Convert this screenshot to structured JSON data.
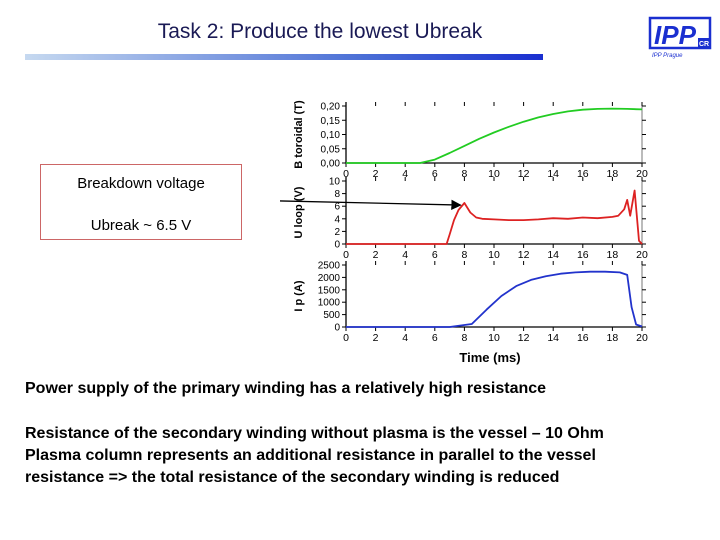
{
  "header": {
    "title": "Task 2: Produce the lowest Ubreak"
  },
  "logo": {
    "text": "IPP",
    "suffix": "CR",
    "subtext": "IPP Prague"
  },
  "callout": {
    "line1": "Breakdown  voltage",
    "line2": "Ubreak ~ 6.5 V"
  },
  "body_text": {
    "paragraph1": "Power supply of the primary winding has a relatively high resistance",
    "paragraph2_lines": [
      "Resistance of the secondary winding without plasma is the vessel – 10 Ohm",
      "Plasma column represents an additional resistance in parallel to the vessel",
      "resistance => the total resistance of the secondary winding is reduced"
    ]
  },
  "colors": {
    "bt": "#22cc22",
    "uloop": "#dd2222",
    "ip": "#2233cc",
    "title": "#1a1a55"
  },
  "chart_data": [
    {
      "type": "line",
      "ylabel": "B toroidal (T)",
      "xlim": [
        0,
        20
      ],
      "ylim": [
        0,
        0.2
      ],
      "xticks": [
        "0",
        "2",
        "4",
        "6",
        "8",
        "10",
        "12",
        "14",
        "16",
        "18",
        "20"
      ],
      "yticks": [
        "0.00",
        "0.05",
        "0.10",
        "0.15",
        "0.20"
      ],
      "ytick_labels": [
        "0,00",
        "0,05",
        "0,10",
        "0,15",
        "0,20"
      ],
      "series": [
        {
          "color": "#22cc22",
          "x": [
            0,
            5,
            6,
            7,
            8,
            9,
            10,
            11,
            12,
            13,
            14,
            15,
            16,
            17,
            18,
            19,
            20
          ],
          "y": [
            0,
            0,
            0.012,
            0.035,
            0.06,
            0.085,
            0.107,
            0.127,
            0.145,
            0.16,
            0.172,
            0.181,
            0.187,
            0.19,
            0.191,
            0.19,
            0.188
          ]
        }
      ]
    },
    {
      "type": "line",
      "ylabel": "U loop (V)",
      "xlim": [
        0,
        20
      ],
      "ylim": [
        0,
        10
      ],
      "xticks": [
        "0",
        "2",
        "4",
        "6",
        "8",
        "10",
        "12",
        "14",
        "16",
        "18",
        "20"
      ],
      "yticks": [
        "0",
        "2",
        "4",
        "6",
        "8",
        "10"
      ],
      "annotation": "Ubreak ~ 6.5 V",
      "series": [
        {
          "color": "#dd2222",
          "x": [
            0,
            6.8,
            7.0,
            7.3,
            7.6,
            8.0,
            8.4,
            8.8,
            9.2,
            10,
            11,
            12,
            13,
            14,
            15,
            16,
            17,
            18,
            18.4,
            18.8,
            19.0,
            19.2,
            19.5,
            19.8,
            20
          ],
          "y": [
            0,
            0,
            1.5,
            3.8,
            5.4,
            6.5,
            5.0,
            4.2,
            4.0,
            3.9,
            3.8,
            3.8,
            3.9,
            4.1,
            4.0,
            4.2,
            4.1,
            4.3,
            4.5,
            5.5,
            7.0,
            4.5,
            8.5,
            0.5,
            0
          ]
        }
      ]
    },
    {
      "type": "line",
      "ylabel": "I p (A)",
      "xlabel": "Time (ms)",
      "xlim": [
        0,
        20
      ],
      "ylim": [
        0,
        2500
      ],
      "xticks": [
        "0",
        "2",
        "4",
        "6",
        "8",
        "10",
        "12",
        "14",
        "16",
        "18",
        "20"
      ],
      "yticks": [
        "0",
        "500",
        "1000",
        "1500",
        "2000",
        "2500"
      ],
      "series": [
        {
          "color": "#2233cc",
          "x": [
            0,
            7.0,
            8.5,
            9.5,
            10.5,
            11.5,
            12.5,
            13.5,
            14.5,
            15.5,
            16.5,
            17.5,
            18.5,
            19.0,
            19.3,
            19.6,
            20
          ],
          "y": [
            0,
            0,
            120,
            700,
            1250,
            1650,
            1900,
            2050,
            2150,
            2200,
            2230,
            2230,
            2200,
            2100,
            800,
            100,
            20
          ]
        }
      ]
    }
  ]
}
